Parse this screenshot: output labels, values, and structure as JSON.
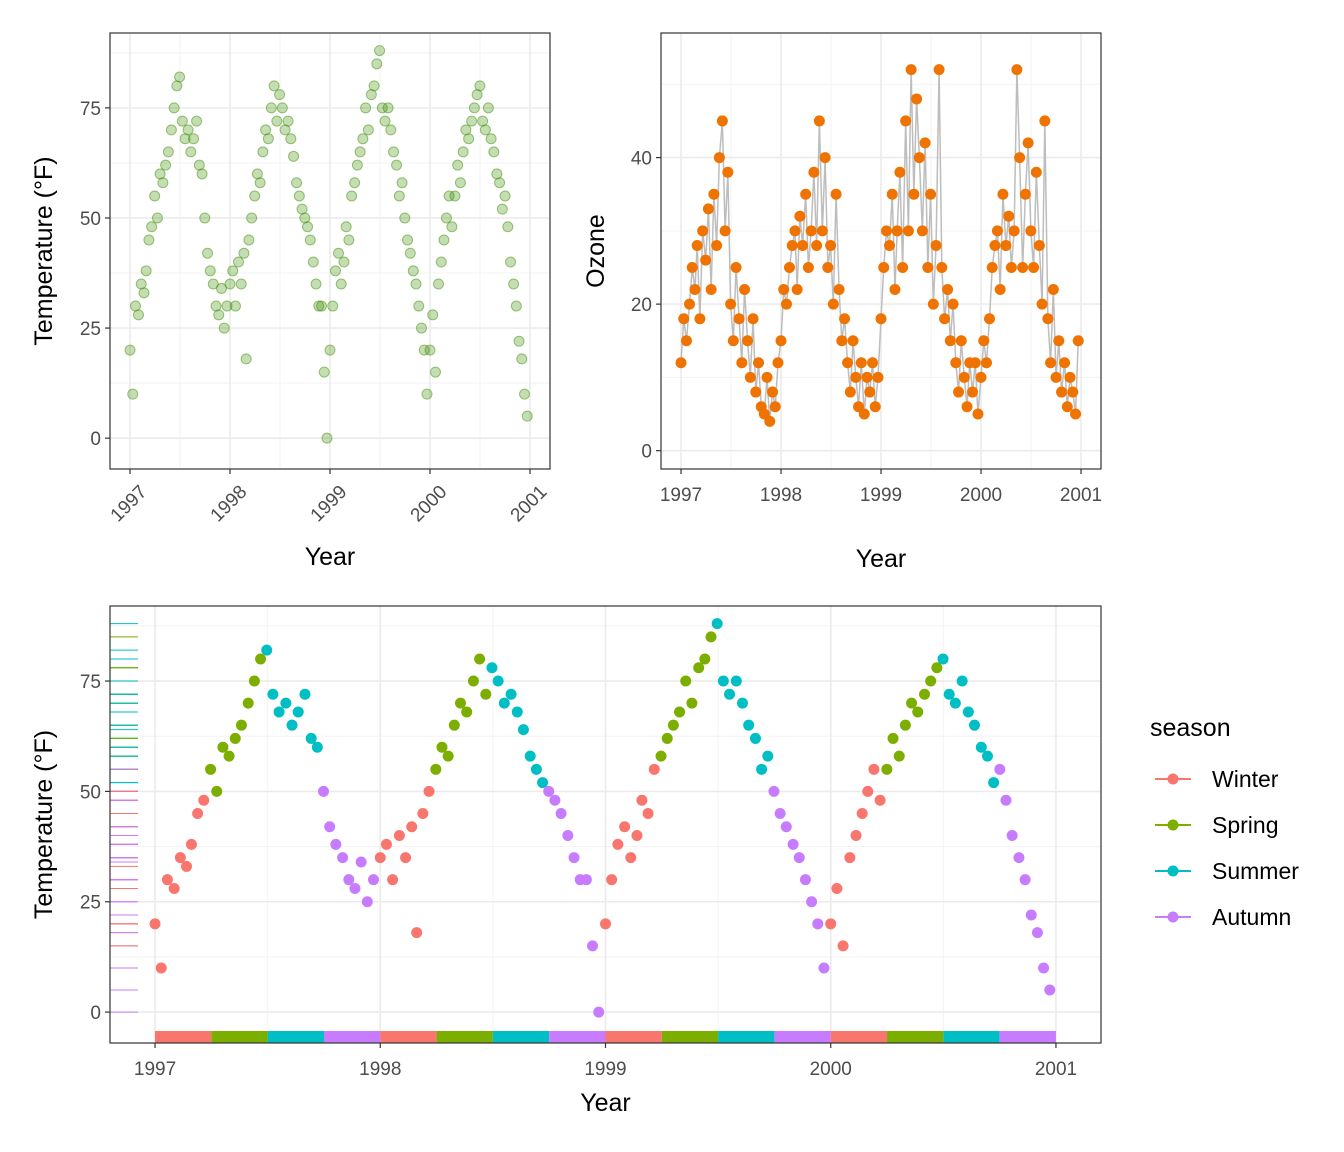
{
  "chart_data": [
    {
      "type": "scatter",
      "panel": "top-left",
      "xlabel": "Year",
      "ylabel": "Temperature (°F)",
      "x_ticks": [
        "1997",
        "1998",
        "1999",
        "2000",
        "2001"
      ],
      "x_tick_rotation_deg": 45,
      "y_ticks": [
        "0",
        "25",
        "50",
        "75"
      ],
      "xlim": [
        1996.8,
        2001.2
      ],
      "ylim": [
        -7,
        92
      ],
      "point_color": "#3a8d00",
      "point_alpha": 0.3,
      "grid": true,
      "y_field": "temp"
    },
    {
      "type": "line",
      "panel": "top-right",
      "xlabel": "Year",
      "ylabel": "Ozone",
      "x_ticks": [
        "1997",
        "1998",
        "1999",
        "2000",
        "2001"
      ],
      "y_ticks": [
        "0",
        "20",
        "40"
      ],
      "xlim": [
        1996.8,
        2001.2
      ],
      "ylim": [
        -2.5,
        57
      ],
      "point_color": "#ef7300",
      "line_color": "#bdbdbd",
      "grid": true,
      "y_field": "ozone"
    },
    {
      "type": "scatter",
      "panel": "bottom",
      "xlabel": "Year",
      "ylabel": "Temperature (°F)",
      "x_ticks": [
        "1997",
        "1998",
        "1999",
        "2000",
        "2001"
      ],
      "y_ticks": [
        "0",
        "25",
        "50",
        "75"
      ],
      "xlim": [
        1996.8,
        2001.2
      ],
      "ylim": [
        -7,
        92
      ],
      "grid": true,
      "rugs": [
        "left",
        "bottom"
      ],
      "y_field": "temp",
      "legend": {
        "title": "season",
        "position": "right",
        "entries": [
          {
            "label": "Winter",
            "color": "#f8766d",
            "months": [
              1,
              2,
              3
            ]
          },
          {
            "label": "Spring",
            "color": "#7cae00",
            "months": [
              4,
              5,
              6
            ]
          },
          {
            "label": "Summer",
            "color": "#00bfc4",
            "months": [
              7,
              8,
              9
            ]
          },
          {
            "label": "Autumn",
            "color": "#c77cff",
            "months": [
              10,
              11,
              12
            ]
          }
        ]
      }
    }
  ],
  "records": [
    [
      "1997-01-01",
      20,
      12
    ],
    [
      "1997-01-11",
      10,
      18
    ],
    [
      "1997-01-21",
      30,
      15
    ],
    [
      "1997-02-01",
      28,
      20
    ],
    [
      "1997-02-11",
      35,
      25
    ],
    [
      "1997-02-21",
      33,
      22
    ],
    [
      "1997-03-01",
      38,
      28
    ],
    [
      "1997-03-11",
      45,
      18
    ],
    [
      "1997-03-21",
      48,
      30
    ],
    [
      "1997-04-01",
      55,
      26
    ],
    [
      "1997-04-11",
      50,
      33
    ],
    [
      "1997-04-21",
      60,
      22
    ],
    [
      "1997-05-01",
      58,
      35
    ],
    [
      "1997-05-11",
      62,
      28
    ],
    [
      "1997-05-21",
      65,
      40
    ],
    [
      "1997-06-01",
      70,
      45
    ],
    [
      "1997-06-11",
      75,
      30
    ],
    [
      "1997-06-21",
      80,
      38
    ],
    [
      "1997-07-01",
      82,
      20
    ],
    [
      "1997-07-11",
      72,
      15
    ],
    [
      "1997-07-21",
      68,
      25
    ],
    [
      "1997-08-01",
      70,
      18
    ],
    [
      "1997-08-11",
      65,
      12
    ],
    [
      "1997-08-21",
      68,
      22
    ],
    [
      "1997-09-01",
      72,
      15
    ],
    [
      "1997-09-11",
      62,
      10
    ],
    [
      "1997-09-21",
      60,
      18
    ],
    [
      "1997-10-01",
      50,
      8
    ],
    [
      "1997-10-11",
      42,
      12
    ],
    [
      "1997-10-21",
      38,
      6
    ],
    [
      "1997-11-01",
      35,
      5
    ],
    [
      "1997-11-11",
      30,
      10
    ],
    [
      "1997-11-21",
      28,
      4
    ],
    [
      "1997-12-01",
      34,
      8
    ],
    [
      "1997-12-11",
      25,
      6
    ],
    [
      "1997-12-21",
      30,
      12
    ],
    [
      "1998-01-01",
      35,
      15
    ],
    [
      "1998-01-11",
      38,
      22
    ],
    [
      "1998-01-21",
      30,
      20
    ],
    [
      "1998-02-01",
      40,
      25
    ],
    [
      "1998-02-11",
      35,
      28
    ],
    [
      "1998-02-21",
      42,
      30
    ],
    [
      "1998-03-01",
      18,
      22
    ],
    [
      "1998-03-11",
      45,
      32
    ],
    [
      "1998-03-21",
      50,
      28
    ],
    [
      "1998-04-01",
      55,
      35
    ],
    [
      "1998-04-11",
      60,
      25
    ],
    [
      "1998-04-21",
      58,
      30
    ],
    [
      "1998-05-01",
      65,
      38
    ],
    [
      "1998-05-11",
      70,
      28
    ],
    [
      "1998-05-21",
      68,
      45
    ],
    [
      "1998-06-01",
      75,
      30
    ],
    [
      "1998-06-11",
      80,
      40
    ],
    [
      "1998-06-21",
      72,
      25
    ],
    [
      "1998-07-01",
      78,
      28
    ],
    [
      "1998-07-11",
      75,
      20
    ],
    [
      "1998-07-21",
      70,
      35
    ],
    [
      "1998-08-01",
      72,
      22
    ],
    [
      "1998-08-11",
      68,
      15
    ],
    [
      "1998-08-21",
      64,
      18
    ],
    [
      "1998-09-01",
      58,
      12
    ],
    [
      "1998-09-11",
      55,
      8
    ],
    [
      "1998-09-21",
      52,
      15
    ],
    [
      "1998-10-01",
      50,
      10
    ],
    [
      "1998-10-11",
      48,
      6
    ],
    [
      "1998-10-21",
      45,
      12
    ],
    [
      "1998-11-01",
      40,
      5
    ],
    [
      "1998-11-11",
      35,
      10
    ],
    [
      "1998-11-21",
      30,
      8
    ],
    [
      "1998-12-01",
      30,
      12
    ],
    [
      "1998-12-11",
      15,
      6
    ],
    [
      "1998-12-21",
      0,
      10
    ],
    [
      "1999-01-01",
      20,
      18
    ],
    [
      "1999-01-11",
      30,
      25
    ],
    [
      "1999-01-21",
      38,
      30
    ],
    [
      "1999-02-01",
      42,
      28
    ],
    [
      "1999-02-11",
      35,
      35
    ],
    [
      "1999-02-21",
      40,
      22
    ],
    [
      "1999-03-01",
      48,
      30
    ],
    [
      "1999-03-11",
      45,
      38
    ],
    [
      "1999-03-21",
      55,
      25
    ],
    [
      "1999-04-01",
      58,
      45
    ],
    [
      "1999-04-11",
      62,
      30
    ],
    [
      "1999-04-21",
      65,
      52
    ],
    [
      "1999-05-01",
      68,
      35
    ],
    [
      "1999-05-11",
      75,
      48
    ],
    [
      "1999-05-21",
      70,
      40
    ],
    [
      "1999-06-01",
      78,
      30
    ],
    [
      "1999-06-11",
      80,
      42
    ],
    [
      "1999-06-21",
      85,
      25
    ],
    [
      "1999-07-01",
      88,
      35
    ],
    [
      "1999-07-11",
      75,
      20
    ],
    [
      "1999-07-21",
      72,
      28
    ],
    [
      "1999-08-01",
      75,
      52
    ],
    [
      "1999-08-11",
      70,
      25
    ],
    [
      "1999-08-21",
      65,
      18
    ],
    [
      "1999-09-01",
      62,
      22
    ],
    [
      "1999-09-11",
      55,
      15
    ],
    [
      "1999-09-21",
      58,
      20
    ],
    [
      "1999-10-01",
      50,
      12
    ],
    [
      "1999-10-11",
      45,
      8
    ],
    [
      "1999-10-21",
      42,
      15
    ],
    [
      "1999-11-01",
      38,
      10
    ],
    [
      "1999-11-11",
      35,
      6
    ],
    [
      "1999-11-21",
      30,
      12
    ],
    [
      "1999-12-01",
      25,
      8
    ],
    [
      "1999-12-11",
      20,
      12
    ],
    [
      "1999-12-21",
      10,
      5
    ],
    [
      "2000-01-01",
      20,
      10
    ],
    [
      "2000-01-11",
      28,
      15
    ],
    [
      "2000-01-21",
      15,
      12
    ],
    [
      "2000-02-01",
      35,
      18
    ],
    [
      "2000-02-11",
      40,
      25
    ],
    [
      "2000-02-21",
      45,
      28
    ],
    [
      "2000-03-01",
      50,
      30
    ],
    [
      "2000-03-11",
      55,
      22
    ],
    [
      "2000-03-21",
      48,
      35
    ],
    [
      "2000-04-01",
      55,
      28
    ],
    [
      "2000-04-11",
      62,
      32
    ],
    [
      "2000-04-21",
      58,
      25
    ],
    [
      "2000-05-01",
      65,
      30
    ],
    [
      "2000-05-11",
      70,
      52
    ],
    [
      "2000-05-21",
      68,
      40
    ],
    [
      "2000-06-01",
      72,
      25
    ],
    [
      "2000-06-11",
      75,
      35
    ],
    [
      "2000-06-21",
      78,
      42
    ],
    [
      "2000-07-01",
      80,
      30
    ],
    [
      "2000-07-11",
      72,
      25
    ],
    [
      "2000-07-21",
      70,
      38
    ],
    [
      "2000-08-01",
      75,
      28
    ],
    [
      "2000-08-11",
      68,
      20
    ],
    [
      "2000-08-21",
      65,
      45
    ],
    [
      "2000-09-01",
      60,
      18
    ],
    [
      "2000-09-11",
      58,
      12
    ],
    [
      "2000-09-21",
      52,
      22
    ],
    [
      "2000-10-01",
      55,
      10
    ],
    [
      "2000-10-11",
      48,
      15
    ],
    [
      "2000-10-21",
      40,
      8
    ],
    [
      "2000-11-01",
      35,
      12
    ],
    [
      "2000-11-11",
      30,
      6
    ],
    [
      "2000-11-21",
      22,
      10
    ],
    [
      "2000-12-01",
      18,
      8
    ],
    [
      "2000-12-11",
      10,
      5
    ],
    [
      "2000-12-21",
      5,
      15
    ]
  ]
}
